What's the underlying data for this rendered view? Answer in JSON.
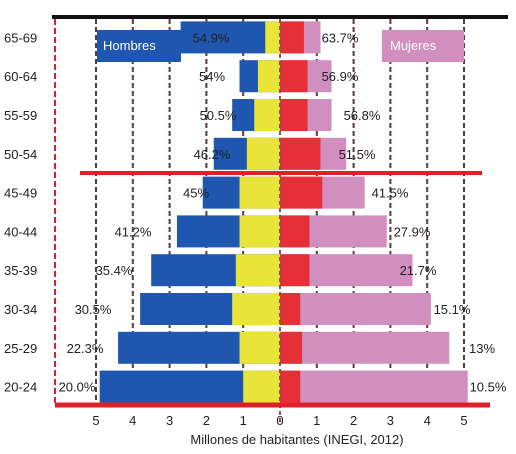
{
  "chart_data": {
    "type": "bar",
    "orientation": "horizontal",
    "layout": "population-pyramid",
    "title": "",
    "xlabel": "Millones de habitantes (INEGI, 2012)",
    "ylabel": "",
    "xlim": [
      -5.5,
      5.5
    ],
    "x_ticks": [
      -5,
      -4,
      -3,
      -2,
      -1,
      0,
      1,
      2,
      3,
      4,
      5
    ],
    "x_tick_labels": [
      "5",
      "4",
      "3",
      "2",
      "1",
      "0",
      "1",
      "2",
      "3",
      "4",
      "5"
    ],
    "categories": [
      "65-69",
      "60-64",
      "55-59",
      "50-54",
      "45-49",
      "40-44",
      "35-39",
      "30-34",
      "25-29",
      "20-24"
    ],
    "series": [
      {
        "name": "Hombres",
        "side": "left",
        "color": "#1f57b0",
        "inner_color": "#e8e43a",
        "totals": [
          2.7,
          1.1,
          1.3,
          1.8,
          2.1,
          2.8,
          3.5,
          3.8,
          4.4,
          4.9
        ],
        "inner_values": [
          0.4,
          0.6,
          0.7,
          0.9,
          1.1,
          1.1,
          1.2,
          1.3,
          1.1,
          1.0
        ],
        "percent_labels": [
          "54.9%",
          "54%",
          "50.5%",
          "46.2%",
          "45%",
          "41.2%",
          "35.4%",
          "30.5%",
          "22.3%",
          "20.0%"
        ]
      },
      {
        "name": "Mujeres",
        "side": "right",
        "color": "#d08fbf",
        "inner_color": "#e53038",
        "totals": [
          1.1,
          1.4,
          1.4,
          1.8,
          2.3,
          2.9,
          3.6,
          4.1,
          4.6,
          5.1
        ],
        "inner_values": [
          0.65,
          0.75,
          0.75,
          1.1,
          1.15,
          0.8,
          0.8,
          0.55,
          0.6,
          0.55
        ],
        "percent_labels": [
          "63.7%",
          "56.9%",
          "56.8%",
          "51.5%",
          "41.5%",
          "27.9%",
          "21.7%",
          "15.1%",
          "13%",
          "10.5%"
        ]
      }
    ],
    "grid": "vertical dashed",
    "legend": "inside-top",
    "colors": {
      "frame_red": "#e02029",
      "top_border": "#111111",
      "grid_dash": "#5a3a3a",
      "center_dash": "#8a5050"
    }
  }
}
